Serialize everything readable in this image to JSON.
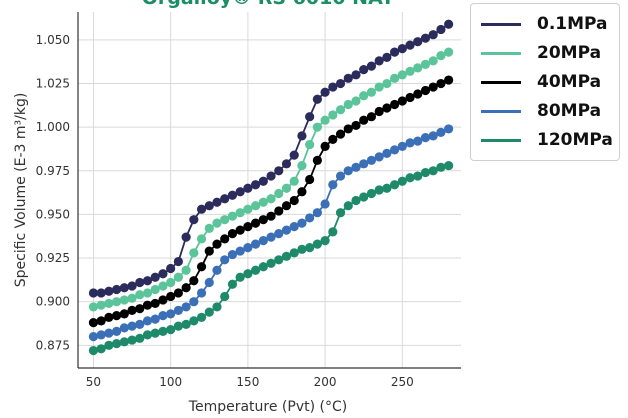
{
  "chart_data": {
    "type": "line",
    "title": "Orgalloy® RS 6010 NAT",
    "xlabel": "Temperature (Pvt) (°C)",
    "ylabel": "Specific Volume (E-3 m³/kg)",
    "xlim": [
      40,
      288
    ],
    "ylim": [
      0.862,
      1.066
    ],
    "xticks": [
      50,
      100,
      150,
      200,
      250
    ],
    "yticks": [
      0.875,
      0.9,
      0.925,
      0.95,
      0.975,
      1.0,
      1.025,
      1.05
    ],
    "xtick_labels": [
      "50",
      "100",
      "150",
      "200",
      "250"
    ],
    "ytick_labels": [
      "0.875",
      "0.900",
      "0.925",
      "0.950",
      "0.975",
      "1.000",
      "1.025",
      "1.050"
    ],
    "grid": true,
    "legend_position": "outside-top-right",
    "x": [
      50,
      55,
      60,
      65,
      70,
      75,
      80,
      85,
      90,
      95,
      100,
      105,
      110,
      115,
      120,
      125,
      130,
      135,
      140,
      145,
      150,
      155,
      160,
      165,
      170,
      175,
      180,
      185,
      190,
      195,
      200,
      205,
      210,
      215,
      220,
      225,
      230,
      235,
      240,
      245,
      250,
      255,
      260,
      265,
      270,
      275,
      280
    ],
    "series": [
      {
        "name": "0.1MPa",
        "color": "#2b2b5c",
        "values": [
          0.905,
          0.905,
          0.906,
          0.907,
          0.908,
          0.909,
          0.911,
          0.912,
          0.914,
          0.916,
          0.919,
          0.923,
          0.937,
          0.947,
          0.953,
          0.955,
          0.957,
          0.959,
          0.961,
          0.963,
          0.965,
          0.967,
          0.969,
          0.972,
          0.975,
          0.979,
          0.984,
          0.995,
          1.006,
          1.016,
          1.02,
          1.023,
          1.025,
          1.028,
          1.03,
          1.033,
          1.035,
          1.038,
          1.04,
          1.043,
          1.045,
          1.047,
          1.049,
          1.051,
          1.053,
          1.056,
          1.059
        ]
      },
      {
        "name": "20MPa",
        "color": "#5bc49a",
        "values": [
          0.897,
          0.898,
          0.899,
          0.9,
          0.901,
          0.902,
          0.904,
          0.905,
          0.907,
          0.909,
          0.911,
          0.914,
          0.918,
          0.928,
          0.936,
          0.942,
          0.945,
          0.947,
          0.949,
          0.951,
          0.953,
          0.955,
          0.957,
          0.959,
          0.962,
          0.965,
          0.969,
          0.978,
          0.99,
          1.0,
          1.004,
          1.007,
          1.01,
          1.013,
          1.015,
          1.018,
          1.02,
          1.023,
          1.025,
          1.028,
          1.03,
          1.032,
          1.034,
          1.036,
          1.038,
          1.041,
          1.043
        ]
      },
      {
        "name": "40MPa",
        "color": "#000000",
        "values": [
          0.888,
          0.889,
          0.891,
          0.892,
          0.893,
          0.895,
          0.896,
          0.898,
          0.899,
          0.901,
          0.903,
          0.905,
          0.908,
          0.912,
          0.92,
          0.929,
          0.933,
          0.936,
          0.939,
          0.941,
          0.943,
          0.945,
          0.947,
          0.949,
          0.952,
          0.955,
          0.958,
          0.963,
          0.97,
          0.981,
          0.989,
          0.993,
          0.996,
          0.999,
          1.001,
          1.004,
          1.006,
          1.009,
          1.011,
          1.013,
          1.015,
          1.017,
          1.019,
          1.021,
          1.023,
          1.025,
          1.027
        ]
      },
      {
        "name": "80MPa",
        "color": "#3b6fb6",
        "values": [
          0.88,
          0.881,
          0.882,
          0.883,
          0.885,
          0.886,
          0.887,
          0.889,
          0.89,
          0.892,
          0.893,
          0.895,
          0.897,
          0.9,
          0.905,
          0.911,
          0.918,
          0.924,
          0.927,
          0.929,
          0.931,
          0.933,
          0.935,
          0.937,
          0.939,
          0.941,
          0.943,
          0.945,
          0.948,
          0.951,
          0.956,
          0.967,
          0.972,
          0.975,
          0.977,
          0.979,
          0.981,
          0.983,
          0.985,
          0.987,
          0.989,
          0.991,
          0.992,
          0.994,
          0.995,
          0.997,
          0.999
        ]
      },
      {
        "name": "120MPa",
        "color": "#1e8a6a",
        "values": [
          0.872,
          0.873,
          0.875,
          0.876,
          0.877,
          0.878,
          0.879,
          0.881,
          0.882,
          0.883,
          0.884,
          0.886,
          0.887,
          0.889,
          0.891,
          0.894,
          0.897,
          0.903,
          0.91,
          0.914,
          0.916,
          0.918,
          0.92,
          0.922,
          0.924,
          0.926,
          0.928,
          0.93,
          0.931,
          0.933,
          0.935,
          0.94,
          0.951,
          0.955,
          0.958,
          0.96,
          0.962,
          0.964,
          0.965,
          0.967,
          0.969,
          0.971,
          0.972,
          0.974,
          0.975,
          0.977,
          0.978
        ]
      }
    ]
  }
}
